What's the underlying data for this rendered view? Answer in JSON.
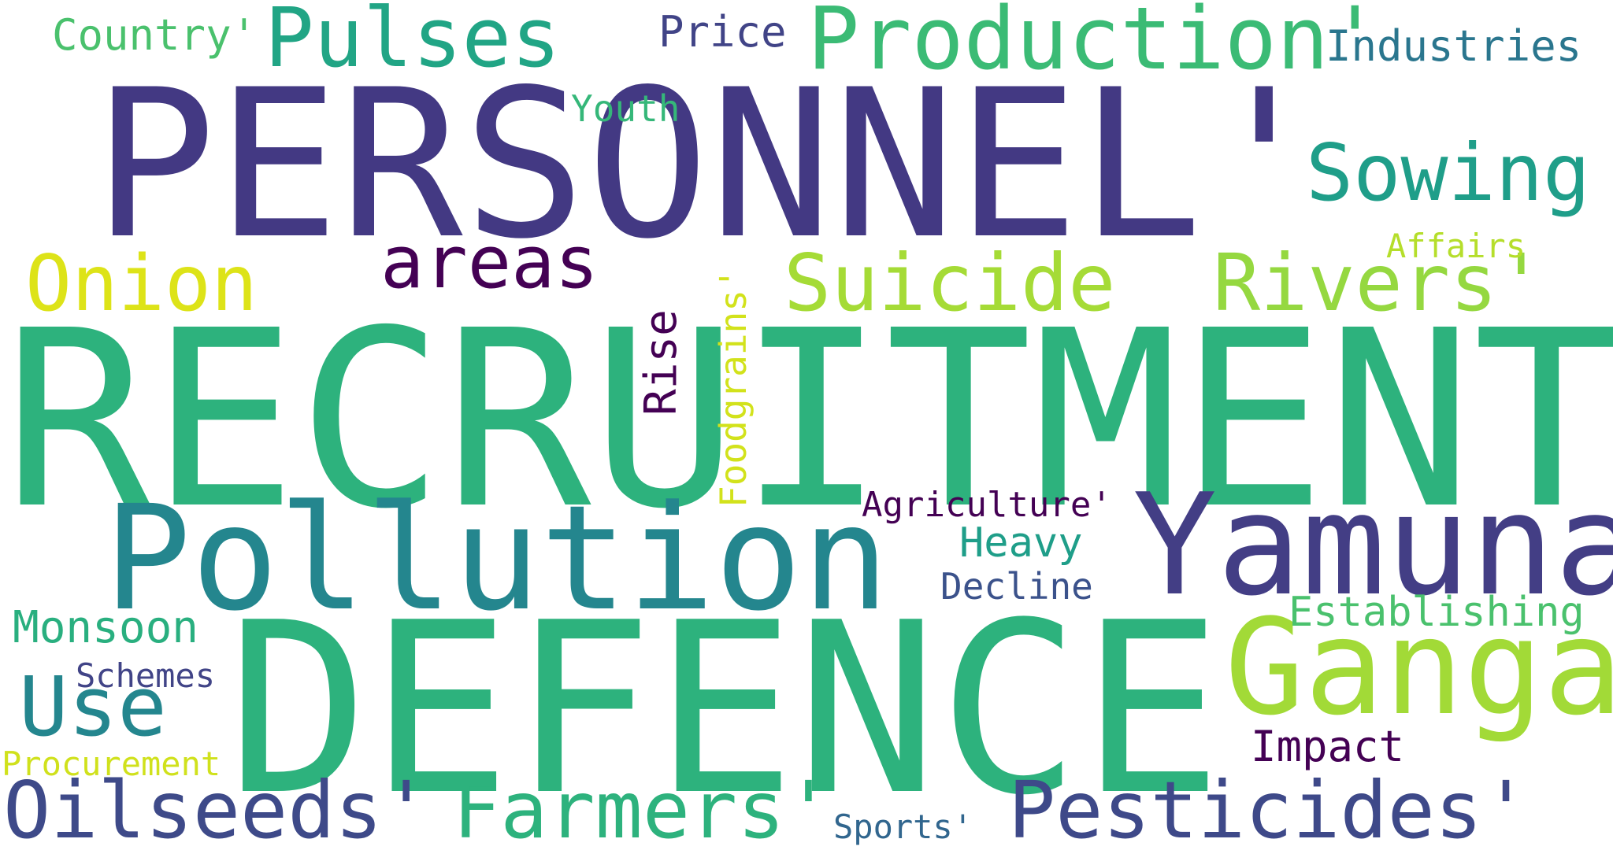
{
  "words": [
    {
      "text": "PERSONNEL'",
      "color": "#433983"
    },
    {
      "text": "RECRUITMENT",
      "color": "#2db27d"
    },
    {
      "text": "DEFENCE",
      "color": "#2db27d"
    },
    {
      "text": "Pollution",
      "color": "#24868e"
    },
    {
      "text": "Yamuna",
      "color": "#433e85"
    },
    {
      "text": "Ganga",
      "color": "#a2da37"
    },
    {
      "text": "Production'",
      "color": "#3bbb75"
    },
    {
      "text": "Pulses",
      "color": "#21a585"
    },
    {
      "text": "Sowing",
      "color": "#1f9e89"
    },
    {
      "text": "Suicide",
      "color": "#a5db36"
    },
    {
      "text": "Rivers'",
      "color": "#95d840"
    },
    {
      "text": "Onion",
      "color": "#dde318"
    },
    {
      "text": "areas",
      "color": "#440154"
    },
    {
      "text": "Use",
      "color": "#24868e"
    },
    {
      "text": "Oilseeds'",
      "color": "#3e4a89"
    },
    {
      "text": "Farmers'",
      "color": "#2db27d"
    },
    {
      "text": "Pesticides'",
      "color": "#3e4989"
    },
    {
      "text": "Country'",
      "color": "#4ac16d"
    },
    {
      "text": "Price",
      "color": "#414487"
    },
    {
      "text": "Industries",
      "color": "#2a768e"
    },
    {
      "text": "Youth",
      "color": "#35b779"
    },
    {
      "text": "Affairs",
      "color": "#b5de2b"
    },
    {
      "text": "Rise",
      "color": "#440154"
    },
    {
      "text": "Foodgrains'",
      "color": "#d2e21b"
    },
    {
      "text": "Agriculture'",
      "color": "#440154"
    },
    {
      "text": "Heavy",
      "color": "#1f9e89"
    },
    {
      "text": "Decline",
      "color": "#3b528b"
    },
    {
      "text": "Establishing",
      "color": "#4ac16d"
    },
    {
      "text": "Monsoon",
      "color": "#29af7f"
    },
    {
      "text": "Schemes",
      "color": "#414487"
    },
    {
      "text": "Impact",
      "color": "#440154"
    },
    {
      "text": "Procurement",
      "color": "#d0e11c"
    },
    {
      "text": "Sports'",
      "color": "#31668e"
    }
  ]
}
